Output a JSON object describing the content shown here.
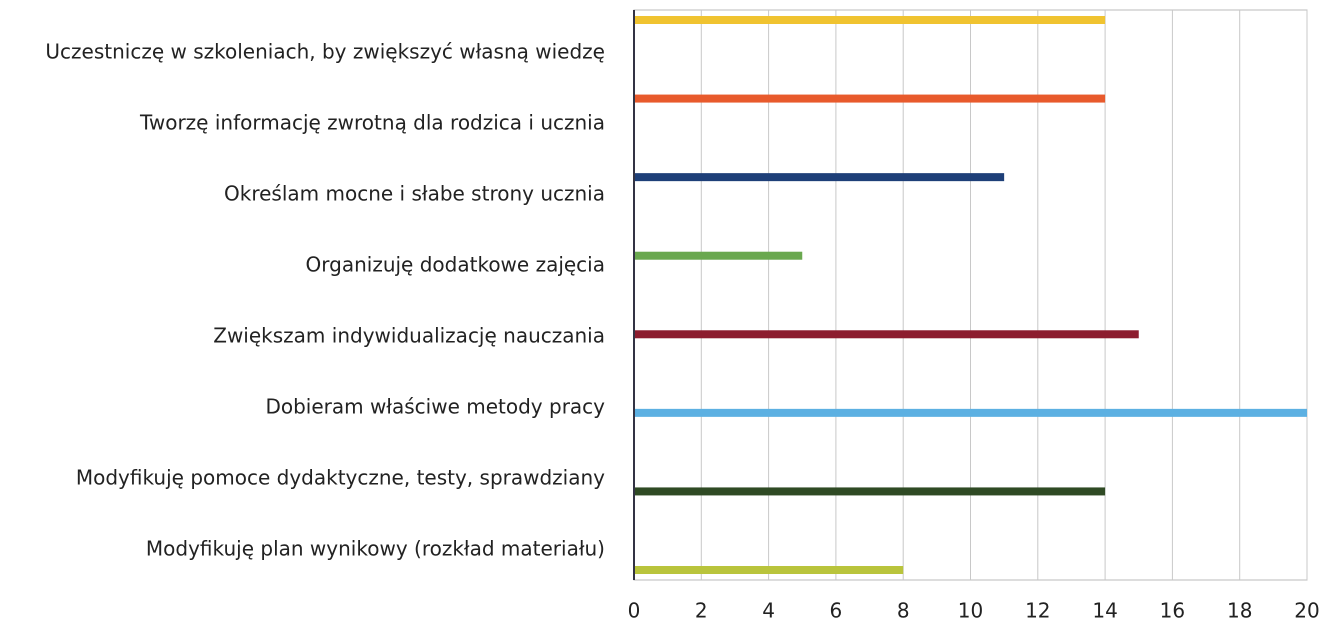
{
  "chart_data": {
    "type": "barh",
    "categories": [
      "Uczestniczę w szkoleniach, by zwiększyć własną wiedzę",
      "Tworzę informację zwrotną dla rodzica i ucznia",
      "Określam mocne i słabe strony ucznia",
      "Organizuję dodatkowe zajęcia",
      "Zwiększam indywidualizację nauczania",
      "Dobieram właściwe metody pracy",
      "Modyfikuję pomoce dydaktyczne, testy, sprawdziany",
      "Modyfikuję plan wynikowy (rozkład materiału)"
    ],
    "values": [
      14,
      14,
      11,
      5,
      15,
      20,
      14,
      8
    ],
    "colors": [
      "#f0c330",
      "#e85a2c",
      "#1e3f78",
      "#6aa84f",
      "#8c1c2e",
      "#5cb0e2",
      "#2f4a24",
      "#b9c43c"
    ],
    "xlim": [
      0,
      20
    ],
    "xticks": [
      0,
      2,
      4,
      6,
      8,
      10,
      12,
      14,
      16,
      18,
      20
    ],
    "grid": true
  }
}
